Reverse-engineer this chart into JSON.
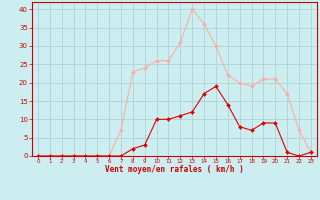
{
  "x": [
    0,
    1,
    2,
    3,
    4,
    5,
    6,
    7,
    8,
    9,
    10,
    11,
    12,
    13,
    14,
    15,
    16,
    17,
    18,
    19,
    20,
    21,
    22,
    23
  ],
  "wind_avg": [
    0,
    0,
    0,
    0,
    0,
    0,
    0,
    0,
    2,
    3,
    10,
    10,
    11,
    12,
    17,
    19,
    14,
    8,
    7,
    9,
    9,
    1,
    0,
    1
  ],
  "wind_gust": [
    0,
    0,
    0,
    0,
    0,
    0,
    0,
    7,
    23,
    24,
    26,
    26,
    31,
    40,
    36,
    30,
    22,
    20,
    19,
    21,
    21,
    17,
    7,
    1
  ],
  "bg_color": "#cceef0",
  "grid_color": "#aacccc",
  "avg_color": "#dd0000",
  "gust_color": "#ffaaaa",
  "xlabel": "Vent moyen/en rafales ( km/h )",
  "ylabel_ticks": [
    0,
    5,
    10,
    15,
    20,
    25,
    30,
    35,
    40
  ],
  "ylim": [
    0,
    42
  ],
  "xlim": [
    -0.5,
    23.5
  ]
}
